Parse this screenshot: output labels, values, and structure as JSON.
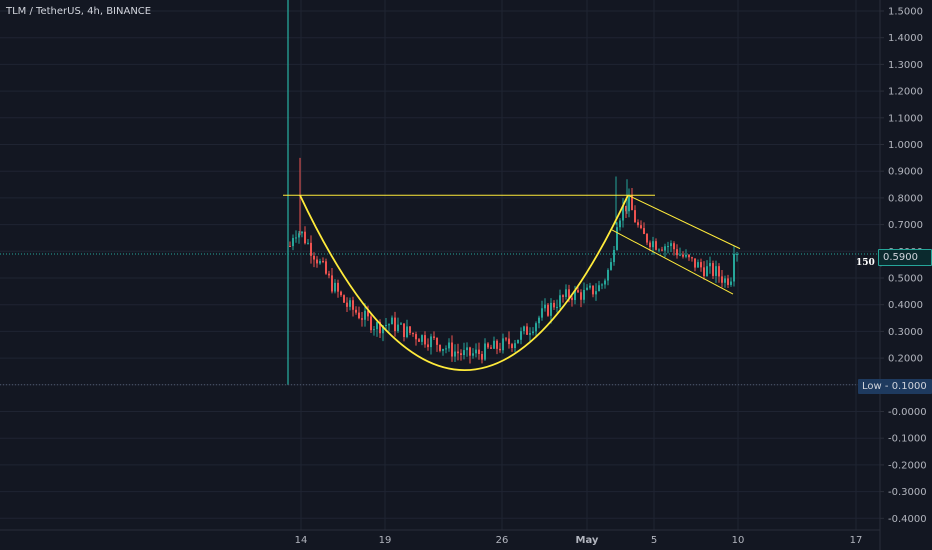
{
  "header": {
    "title": "TLM / TetherUS, 4h, BINANCE"
  },
  "annotations": {
    "current_price_label": "0.5900",
    "low_label": "Low",
    "low_value": "0.1000",
    "amount_label": "150 $"
  },
  "colors": {
    "background": "#131722",
    "grid": "#1f2432",
    "up": "#26a69a",
    "down": "#ef5350",
    "pattern": "#ffeb3b",
    "current_line": "#26a69a",
    "low_line": "#2962ff"
  },
  "chart_data": {
    "type": "candlestick",
    "title": "TLM / TetherUS, 4h, BINANCE",
    "y_ticks": [
      "1.5000",
      "1.4000",
      "1.3000",
      "1.2000",
      "1.1000",
      "1.0000",
      "0.9000",
      "0.8000",
      "0.7000",
      "0.6000",
      "0.5000",
      "0.4000",
      "0.3000",
      "0.2000",
      "0.1000",
      "-0.0000",
      "-0.1000",
      "-0.2000",
      "-0.3000",
      "-0.4000"
    ],
    "x_ticks": [
      "14",
      "19",
      "26",
      "May",
      "5",
      "10",
      "17"
    ],
    "ylim": [
      -0.42,
      1.53
    ],
    "current_price": 0.59,
    "low": 0.1,
    "resistance_level": 0.81,
    "candles_close_trend": [
      {
        "t": "14",
        "close": 0.6
      },
      {
        "t": "19",
        "close": 0.32
      },
      {
        "t": "26",
        "close": 0.26
      },
      {
        "t": "May",
        "close": 0.48
      },
      {
        "t": "peak",
        "close": 0.81
      },
      {
        "t": "10",
        "close": 0.59
      }
    ]
  }
}
